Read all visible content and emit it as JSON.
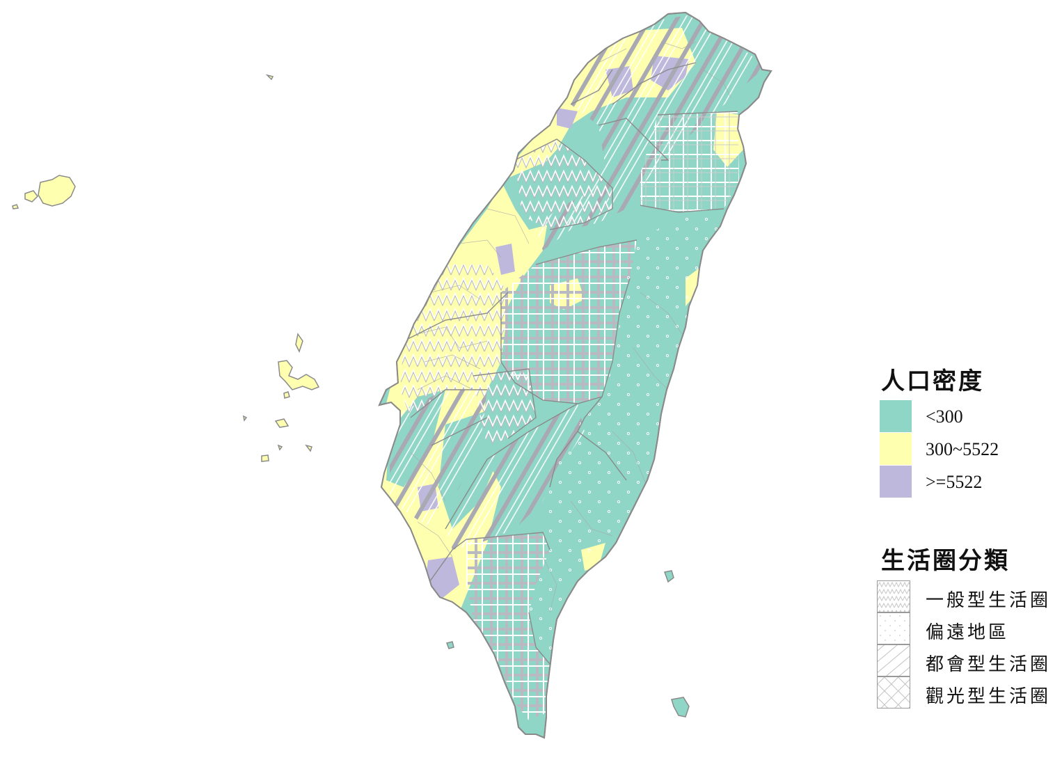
{
  "legend": {
    "density_title": "人口密度",
    "density_classes": [
      {
        "label": "<300",
        "color": "#8fd6c6"
      },
      {
        "label": "300~5522",
        "color": "#ffffb0"
      },
      {
        "label": ">=5522",
        "color": "#bdb8dc"
      }
    ],
    "zone_title": "生活圈分類",
    "zone_classes": [
      {
        "label": "一般型生活圈",
        "pattern": "zigzag"
      },
      {
        "label": "偏遠地區",
        "pattern": "dots"
      },
      {
        "label": "都會型生活圈",
        "pattern": "diagonal"
      },
      {
        "label": "觀光型生活圈",
        "pattern": "crosshatch"
      }
    ]
  },
  "colors": {
    "low": "#8fd6c6",
    "mid": "#ffffb0",
    "high": "#bdb8dc",
    "border": "#8a8a8a"
  }
}
